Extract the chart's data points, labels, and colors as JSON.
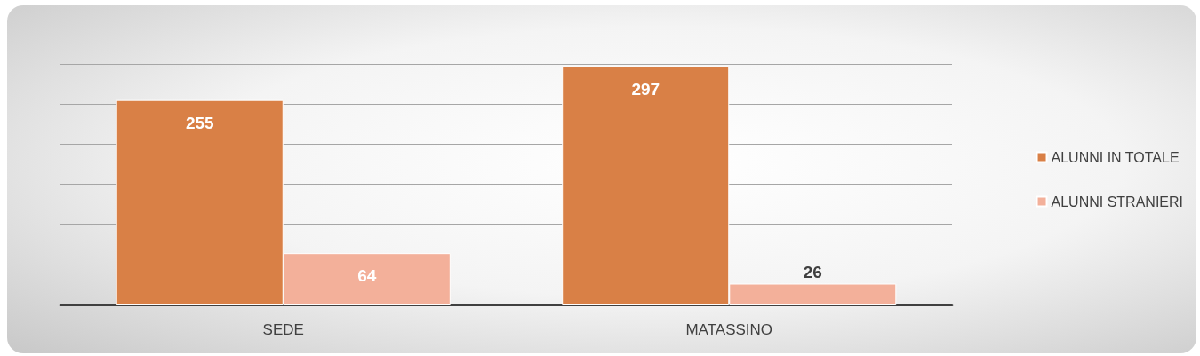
{
  "chart_data": {
    "type": "bar",
    "categories": [
      "SEDE",
      "MATASSINO"
    ],
    "series": [
      {
        "name": "ALUNNI IN TOTALE",
        "color": "#d98046",
        "values": [
          255,
          297
        ]
      },
      {
        "name": "ALUNNI STRANIERI",
        "color": "#f3b09a",
        "values": [
          64,
          26
        ]
      }
    ],
    "ylim": [
      0,
      300
    ],
    "yticks": [
      {
        "value": 0,
        "label": null
      },
      {
        "value": 50,
        "label": null
      },
      {
        "value": 100,
        "label": null
      },
      {
        "value": 150,
        "label": null
      },
      {
        "value": 200,
        "label": null
      },
      {
        "value": 250,
        "label": null
      },
      {
        "value": 300,
        "label": null
      }
    ],
    "grid": "y",
    "legend": "right",
    "tick_labels": "x",
    "data_labels": true
  }
}
